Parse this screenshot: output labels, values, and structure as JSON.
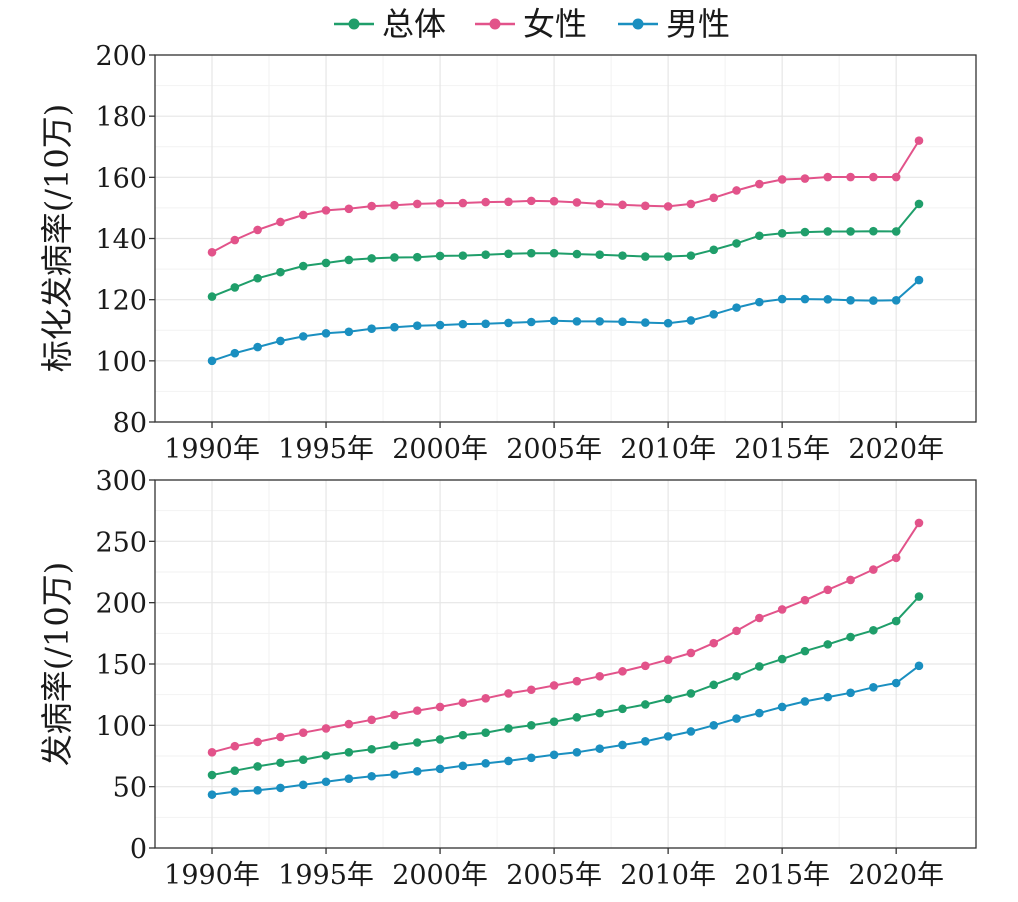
{
  "legend": [
    {
      "label": "总体",
      "color": "#1f9e6a"
    },
    {
      "label": "女性",
      "color": "#e2538a"
    },
    {
      "label": "男性",
      "color": "#1a8fc0"
    }
  ],
  "chart_data": [
    {
      "type": "line",
      "ylabel": "标化发病率(/10万)",
      "ylim": [
        80,
        200
      ],
      "yticks": [
        80,
        100,
        120,
        140,
        160,
        180,
        200
      ],
      "xlim": [
        1987.5,
        2023.5
      ],
      "xticks": [
        1990,
        1995,
        2000,
        2005,
        2010,
        2015,
        2020
      ],
      "xtick_labels": [
        "1990年",
        "1995年",
        "2000年",
        "2005年",
        "2010年",
        "2015年",
        "2020年"
      ],
      "grid": true,
      "x": [
        1990,
        1991,
        1992,
        1993,
        1994,
        1995,
        1996,
        1997,
        1998,
        1999,
        2000,
        2001,
        2002,
        2003,
        2004,
        2005,
        2006,
        2007,
        2008,
        2009,
        2010,
        2011,
        2012,
        2013,
        2014,
        2015,
        2016,
        2017,
        2018,
        2019,
        2020,
        2021
      ],
      "series": [
        {
          "name": "总体",
          "values": [
            121,
            124,
            127,
            129,
            131,
            132,
            133,
            133.5,
            133.8,
            133.9,
            134.3,
            134.4,
            134.7,
            135,
            135.2,
            135.2,
            134.9,
            134.7,
            134.4,
            134.1,
            134.1,
            134.4,
            136.3,
            138.4,
            140.9,
            141.7,
            142.1,
            142.3,
            142.3,
            142.4,
            142.3,
            151.3
          ]
        },
        {
          "name": "女性",
          "values": [
            135.5,
            139.5,
            142.8,
            145.4,
            147.7,
            149.2,
            149.7,
            150.6,
            150.9,
            151.3,
            151.5,
            151.6,
            151.9,
            152,
            152.3,
            152.2,
            151.8,
            151.3,
            151,
            150.7,
            150.5,
            151.3,
            153.3,
            155.7,
            157.8,
            159.3,
            159.6,
            160.1,
            160.1,
            160.1,
            160.1,
            172
          ]
        },
        {
          "name": "男性",
          "values": [
            100,
            102.5,
            104.5,
            106.5,
            108,
            109,
            109.5,
            110.5,
            111,
            111.5,
            111.7,
            112,
            112.1,
            112.4,
            112.7,
            113.1,
            112.9,
            112.9,
            112.8,
            112.5,
            112.3,
            113.2,
            115.2,
            117.4,
            119.2,
            120.2,
            120.2,
            120.1,
            119.8,
            119.7,
            119.8,
            126.4
          ]
        }
      ]
    },
    {
      "type": "line",
      "ylabel": "发病率(/10万)",
      "ylim": [
        0,
        300
      ],
      "yticks": [
        0,
        50,
        100,
        150,
        200,
        250,
        300
      ],
      "xlim": [
        1987.5,
        2023.5
      ],
      "xticks": [
        1990,
        1995,
        2000,
        2005,
        2010,
        2015,
        2020
      ],
      "xtick_labels": [
        "1990年",
        "1995年",
        "2000年",
        "2005年",
        "2010年",
        "2015年",
        "2020年"
      ],
      "grid": true,
      "x": [
        1990,
        1991,
        1992,
        1993,
        1994,
        1995,
        1996,
        1997,
        1998,
        1999,
        2000,
        2001,
        2002,
        2003,
        2004,
        2005,
        2006,
        2007,
        2008,
        2009,
        2010,
        2011,
        2012,
        2013,
        2014,
        2015,
        2016,
        2017,
        2018,
        2019,
        2020,
        2021
      ],
      "series": [
        {
          "name": "总体",
          "values": [
            59.5,
            63,
            66.5,
            69.5,
            72,
            75.5,
            78,
            80.5,
            83.5,
            86,
            88.5,
            92,
            94,
            97.5,
            100,
            103,
            106.5,
            110,
            113.5,
            117,
            121.5,
            126,
            133,
            140,
            148,
            154,
            160.5,
            166,
            172,
            177.5,
            185,
            205
          ]
        },
        {
          "name": "女性",
          "values": [
            78,
            83,
            86.5,
            90.5,
            94,
            97.5,
            101,
            104.5,
            108.5,
            112,
            115,
            118.5,
            122,
            126,
            129,
            132.5,
            136,
            140,
            144,
            148.5,
            153.5,
            159,
            167,
            177,
            187.5,
            194.5,
            202,
            210.5,
            218.5,
            227,
            236.5,
            265
          ]
        },
        {
          "name": "男性",
          "values": [
            43.5,
            46,
            47,
            49,
            51.5,
            54,
            56.5,
            58.5,
            60,
            62.5,
            64.5,
            67,
            69,
            71,
            73.5,
            76,
            78,
            81,
            84,
            87,
            91,
            95,
            100,
            105.5,
            110,
            115,
            119.5,
            123,
            126.5,
            131,
            134.5,
            148.5
          ]
        }
      ]
    }
  ]
}
